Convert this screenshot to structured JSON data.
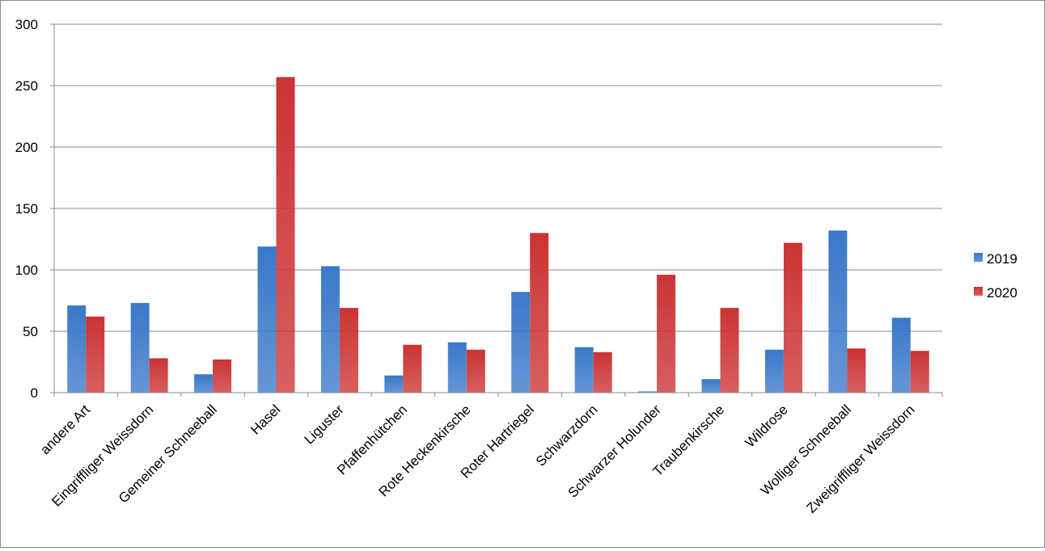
{
  "chart_data": {
    "type": "bar",
    "categories": [
      "andere Art",
      "Eingriffliger Weissdorn",
      "Gemeiner Schneeball",
      "Hasel",
      "Liguster",
      "Pfaffenhütchen",
      "Rote Heckenkirsche",
      "Roter Hartriegel",
      "Schwarzdorn",
      "Schwarzer Holunder",
      "Traubenkirsche",
      "Wildrose",
      "Wolliger Schneeball",
      "Zweigriffliger Weissdorn"
    ],
    "series": [
      {
        "name": "2019",
        "color": "#3a78c9",
        "values": [
          71,
          73,
          15,
          119,
          103,
          14,
          41,
          82,
          37,
          1,
          11,
          35,
          132,
          61
        ]
      },
      {
        "name": "2020",
        "color": "#cc3333",
        "values": [
          62,
          28,
          27,
          257,
          69,
          39,
          35,
          130,
          33,
          96,
          69,
          122,
          36,
          34
        ]
      }
    ],
    "yticks": [
      "0",
      "50",
      "100",
      "150",
      "200",
      "250",
      "300"
    ],
    "ylim": [
      0,
      300
    ],
    "grid": true,
    "legend_position": "right",
    "title": "",
    "xlabel": "",
    "ylabel": ""
  }
}
